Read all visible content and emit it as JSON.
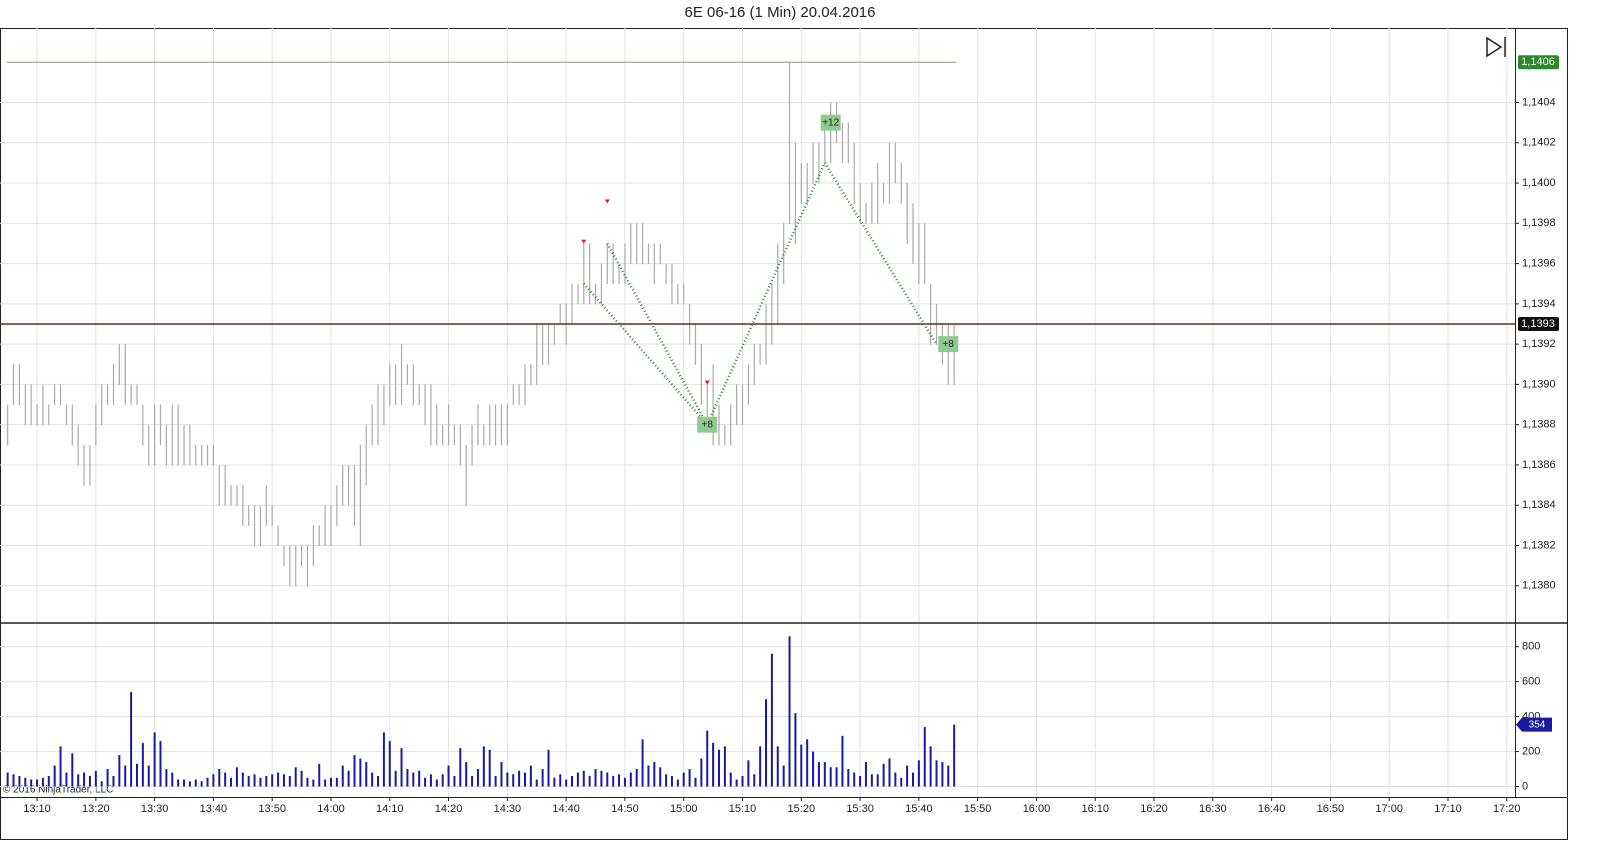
{
  "chart_data": [
    {
      "type": "hilo",
      "title": "6E 06-16 (1 Min)  20.04.2016",
      "copyright": "© 2016 NinjaTrader, LLC",
      "color": "#aaaaaa",
      "x": [
        785,
        786,
        787,
        788,
        789,
        790,
        791,
        792,
        793,
        794,
        795,
        796,
        797,
        798,
        799,
        800,
        801,
        802,
        803,
        804,
        805,
        806,
        807,
        808,
        809,
        810,
        811,
        812,
        813,
        814,
        815,
        816,
        817,
        818,
        819,
        820,
        821,
        822,
        823,
        824,
        825,
        826,
        827,
        828,
        829,
        830,
        831,
        832,
        833,
        834,
        835,
        836,
        837,
        838,
        839,
        840,
        841,
        842,
        843,
        844,
        845,
        846,
        847,
        848,
        849,
        850,
        851,
        852,
        853,
        854,
        855,
        856,
        857,
        858,
        859,
        860,
        861,
        862,
        863,
        864,
        865,
        866,
        867,
        868,
        869,
        870,
        871,
        872,
        873,
        874,
        875,
        876,
        877,
        878,
        879,
        880,
        881,
        882,
        883,
        884,
        885,
        886,
        887,
        888,
        889,
        890,
        891,
        892,
        893,
        894,
        895,
        896,
        897,
        898,
        899,
        900,
        901,
        902,
        903,
        904,
        905,
        906,
        907,
        908,
        909,
        910,
        911,
        912,
        913,
        914,
        915,
        916,
        917,
        918,
        919,
        920,
        921,
        922,
        923,
        924,
        925,
        926,
        927,
        928,
        929,
        930,
        931,
        932,
        933,
        934,
        935,
        936,
        937,
        938,
        939,
        940,
        941,
        942,
        943,
        944,
        945,
        946
      ],
      "high": [
        1.1389,
        1.1391,
        1.1391,
        1.139,
        1.139,
        1.1389,
        1.139,
        1.1389,
        1.139,
        1.139,
        1.1389,
        1.1389,
        1.1388,
        1.1387,
        1.1387,
        1.1389,
        1.139,
        1.139,
        1.1391,
        1.1392,
        1.1392,
        1.139,
        1.139,
        1.1389,
        1.1388,
        1.1389,
        1.1389,
        1.1388,
        1.1389,
        1.1389,
        1.1388,
        1.1388,
        1.1387,
        1.1387,
        1.1387,
        1.1387,
        1.1386,
        1.1386,
        1.1385,
        1.1385,
        1.1385,
        1.1384,
        1.1384,
        1.1384,
        1.1385,
        1.1384,
        1.1383,
        1.1382,
        1.1382,
        1.1382,
        1.1382,
        1.1382,
        1.1383,
        1.1383,
        1.1384,
        1.1384,
        1.1385,
        1.1386,
        1.1386,
        1.1386,
        1.1387,
        1.1388,
        1.1389,
        1.139,
        1.139,
        1.1391,
        1.1391,
        1.1392,
        1.1391,
        1.1391,
        1.139,
        1.139,
        1.139,
        1.1389,
        1.1388,
        1.1389,
        1.1388,
        1.1388,
        1.1387,
        1.1388,
        1.1389,
        1.1388,
        1.1389,
        1.1389,
        1.1389,
        1.1389,
        1.139,
        1.139,
        1.1391,
        1.1391,
        1.1393,
        1.1393,
        1.1393,
        1.1393,
        1.1394,
        1.1394,
        1.1395,
        1.1395,
        1.1397,
        1.1397,
        1.1395,
        1.1396,
        1.1397,
        1.1397,
        1.1396,
        1.1397,
        1.1398,
        1.1398,
        1.1398,
        1.1397,
        1.1397,
        1.1397,
        1.1396,
        1.1396,
        1.1395,
        1.1395,
        1.1394,
        1.1393,
        1.1392,
        1.139,
        1.1391,
        1.1389,
        1.1388,
        1.1389,
        1.139,
        1.139,
        1.1391,
        1.1392,
        1.1392,
        1.1394,
        1.1395,
        1.1397,
        1.1398,
        1.1406,
        1.1402,
        1.1401,
        1.1401,
        1.1402,
        1.1402,
        1.1403,
        1.1404,
        1.1404,
        1.1403,
        1.1403,
        1.1402,
        1.14,
        1.1399,
        1.14,
        1.1401,
        1.14,
        1.1402,
        1.1402,
        1.1401,
        1.14,
        1.1399,
        1.1398,
        1.1398,
        1.1395,
        1.1394,
        1.1393,
        1.1393,
        1.1393
      ],
      "low": [
        1.1387,
        1.1389,
        1.1389,
        1.1388,
        1.1388,
        1.1388,
        1.1388,
        1.1388,
        1.1389,
        1.1389,
        1.1388,
        1.1387,
        1.1386,
        1.1385,
        1.1385,
        1.1387,
        1.1388,
        1.1389,
        1.1389,
        1.139,
        1.1389,
        1.1389,
        1.1389,
        1.1387,
        1.1386,
        1.1386,
        1.1387,
        1.1386,
        1.1386,
        1.1386,
        1.1386,
        1.1386,
        1.1386,
        1.1386,
        1.1386,
        1.1386,
        1.1384,
        1.1384,
        1.1384,
        1.1384,
        1.1383,
        1.1383,
        1.1382,
        1.1382,
        1.1383,
        1.1383,
        1.1382,
        1.1381,
        1.138,
        1.138,
        1.1381,
        1.138,
        1.1381,
        1.1382,
        1.1382,
        1.1382,
        1.1383,
        1.1384,
        1.1384,
        1.1383,
        1.1382,
        1.1385,
        1.1387,
        1.1387,
        1.1388,
        1.1389,
        1.1389,
        1.1389,
        1.139,
        1.1389,
        1.1389,
        1.1388,
        1.1387,
        1.1387,
        1.1387,
        1.1387,
        1.1387,
        1.1386,
        1.1384,
        1.1386,
        1.1387,
        1.1387,
        1.1387,
        1.1387,
        1.1387,
        1.1387,
        1.1389,
        1.1389,
        1.1389,
        1.139,
        1.139,
        1.1391,
        1.1391,
        1.1392,
        1.1393,
        1.1392,
        1.1393,
        1.1394,
        1.1394,
        1.1394,
        1.1394,
        1.1394,
        1.1395,
        1.1395,
        1.1395,
        1.1395,
        1.1396,
        1.1396,
        1.1396,
        1.1396,
        1.1395,
        1.1396,
        1.1395,
        1.1394,
        1.1394,
        1.1394,
        1.1392,
        1.1391,
        1.1389,
        1.1388,
        1.1387,
        1.1387,
        1.1387,
        1.1387,
        1.1388,
        1.1388,
        1.1389,
        1.139,
        1.1391,
        1.1391,
        1.1392,
        1.1393,
        1.1395,
        1.1398,
        1.1397,
        1.1399,
        1.1399,
        1.14,
        1.14,
        1.1401,
        1.1401,
        1.1402,
        1.1401,
        1.1401,
        1.1399,
        1.1398,
        1.1398,
        1.1398,
        1.1398,
        1.1399,
        1.1399,
        1.14,
        1.1399,
        1.1397,
        1.1396,
        1.1395,
        1.1395,
        1.1392,
        1.1392,
        1.1391,
        1.139,
        1.139
      ],
      "xlim": [
        783.7,
        1041.4
      ],
      "xticks": [
        {
          "value": 790,
          "label": "13:10"
        },
        {
          "value": 800,
          "label": "13:20"
        },
        {
          "value": 810,
          "label": "13:30"
        },
        {
          "value": 820,
          "label": "13:40"
        },
        {
          "value": 830,
          "label": "13:50"
        },
        {
          "value": 840,
          "label": "14:00"
        },
        {
          "value": 850,
          "label": "14:10"
        },
        {
          "value": 860,
          "label": "14:20"
        },
        {
          "value": 870,
          "label": "14:30"
        },
        {
          "value": 880,
          "label": "14:40"
        },
        {
          "value": 890,
          "label": "14:50"
        },
        {
          "value": 900,
          "label": "15:00"
        },
        {
          "value": 910,
          "label": "15:10"
        },
        {
          "value": 920,
          "label": "15:20"
        },
        {
          "value": 930,
          "label": "15:30"
        },
        {
          "value": 940,
          "label": "15:40"
        },
        {
          "value": 950,
          "label": "15:50"
        },
        {
          "value": 960,
          "label": "16:00"
        },
        {
          "value": 970,
          "label": "16:10"
        },
        {
          "value": 980,
          "label": "16:20"
        },
        {
          "value": 990,
          "label": "16:30"
        },
        {
          "value": 1000,
          "label": "16:40"
        },
        {
          "value": 1010,
          "label": "16:50"
        },
        {
          "value": 1020,
          "label": "17:00"
        },
        {
          "value": 1030,
          "label": "17:10"
        },
        {
          "value": 1040,
          "label": "17:20"
        }
      ],
      "ylim": [
        1.13782,
        1.14077
      ],
      "yticks": [
        {
          "value": 1.138,
          "label": "1,1380"
        },
        {
          "value": 1.1382,
          "label": "1,1382"
        },
        {
          "value": 1.1384,
          "label": "1,1384"
        },
        {
          "value": 1.1386,
          "label": "1,1386"
        },
        {
          "value": 1.1388,
          "label": "1,1388"
        },
        {
          "value": 1.139,
          "label": "1,1390"
        },
        {
          "value": 1.1392,
          "label": "1,1392"
        },
        {
          "value": 1.1394,
          "label": "1,1394"
        },
        {
          "value": 1.1396,
          "label": "1,1396"
        },
        {
          "value": 1.1398,
          "label": "1,1398"
        },
        {
          "value": 1.14,
          "label": "1,1400"
        },
        {
          "value": 1.1402,
          "label": "1,1402"
        },
        {
          "value": 1.1404,
          "label": "1,1404"
        }
      ],
      "grid": true,
      "high_line": {
        "value": 1.1406,
        "label": "1,1406",
        "color": "#8a9a7a"
      },
      "price_line": {
        "value": 1.1393,
        "label": "1,1393",
        "color": "#6b2a1a"
      },
      "trade_color": "#2e8b2e",
      "trades": [
        {
          "x": [
            883,
            904
          ],
          "y": [
            1.1395,
            1.1388
          ]
        },
        {
          "x": [
            887,
            904
          ],
          "y": [
            1.1397,
            1.1388
          ]
        },
        {
          "x": [
            904,
            924
          ],
          "y": [
            1.1388,
            1.1401
          ]
        },
        {
          "x": [
            924,
            943
          ],
          "y": [
            1.1401,
            1.1392
          ]
        }
      ],
      "trade_labels": [
        {
          "x": 904,
          "y": 1.1388,
          "label": "+8"
        },
        {
          "x": 925,
          "y": 1.1403,
          "label": "+12"
        },
        {
          "x": 945,
          "y": 1.1392,
          "label": "+8"
        }
      ]
    },
    {
      "type": "bar",
      "color": "#1a1aa0",
      "x": [
        785,
        786,
        787,
        788,
        789,
        790,
        791,
        792,
        793,
        794,
        795,
        796,
        797,
        798,
        799,
        800,
        801,
        802,
        803,
        804,
        805,
        806,
        807,
        808,
        809,
        810,
        811,
        812,
        813,
        814,
        815,
        816,
        817,
        818,
        819,
        820,
        821,
        822,
        823,
        824,
        825,
        826,
        827,
        828,
        829,
        830,
        831,
        832,
        833,
        834,
        835,
        836,
        837,
        838,
        839,
        840,
        841,
        842,
        843,
        844,
        845,
        846,
        847,
        848,
        849,
        850,
        851,
        852,
        853,
        854,
        855,
        856,
        857,
        858,
        859,
        860,
        861,
        862,
        863,
        864,
        865,
        866,
        867,
        868,
        869,
        870,
        871,
        872,
        873,
        874,
        875,
        876,
        877,
        878,
        879,
        880,
        881,
        882,
        883,
        884,
        885,
        886,
        887,
        888,
        889,
        890,
        891,
        892,
        893,
        894,
        895,
        896,
        897,
        898,
        899,
        900,
        901,
        902,
        903,
        904,
        905,
        906,
        907,
        908,
        909,
        910,
        911,
        912,
        913,
        914,
        915,
        916,
        917,
        918,
        919,
        920,
        921,
        922,
        923,
        924,
        925,
        926,
        927,
        928,
        929,
        930,
        931,
        932,
        933,
        934,
        935,
        936,
        937,
        938,
        939,
        940,
        941,
        942,
        943,
        944,
        945,
        946
      ],
      "values": [
        80,
        70,
        60,
        50,
        40,
        40,
        50,
        60,
        120,
        230,
        80,
        190,
        70,
        80,
        60,
        90,
        30,
        100,
        60,
        180,
        120,
        540,
        130,
        250,
        120,
        310,
        260,
        100,
        80,
        40,
        40,
        30,
        40,
        30,
        50,
        70,
        100,
        80,
        50,
        110,
        80,
        60,
        70,
        50,
        60,
        70,
        80,
        70,
        60,
        110,
        90,
        50,
        40,
        130,
        40,
        50,
        50,
        120,
        90,
        180,
        160,
        140,
        80,
        60,
        310,
        260,
        90,
        220,
        100,
        80,
        90,
        50,
        70,
        40,
        70,
        120,
        60,
        220,
        140,
        60,
        100,
        230,
        210,
        60,
        140,
        80,
        70,
        90,
        80,
        120,
        40,
        100,
        210,
        50,
        70,
        40,
        60,
        80,
        90,
        60,
        100,
        90,
        80,
        60,
        70,
        50,
        80,
        100,
        270,
        120,
        140,
        110,
        70,
        60,
        40,
        80,
        100,
        50,
        160,
        320,
        250,
        210,
        230,
        80,
        40,
        60,
        150,
        70,
        230,
        500,
        760,
        230,
        120,
        860,
        420,
        240,
        270,
        200,
        140,
        140,
        110,
        110,
        290,
        100,
        80,
        60,
        140,
        70,
        70,
        130,
        160,
        80,
        50,
        120,
        80,
        150,
        340,
        230,
        150,
        140,
        120,
        354
      ],
      "xlim": [
        783.7,
        1041.4
      ],
      "xticks": [
        {
          "value": 790,
          "label": "13:10"
        },
        {
          "value": 800,
          "label": "13:20"
        },
        {
          "value": 810,
          "label": "13:30"
        },
        {
          "value": 820,
          "label": "13:40"
        },
        {
          "value": 830,
          "label": "13:50"
        },
        {
          "value": 840,
          "label": "14:00"
        },
        {
          "value": 850,
          "label": "14:10"
        },
        {
          "value": 860,
          "label": "14:20"
        },
        {
          "value": 870,
          "label": "14:30"
        },
        {
          "value": 880,
          "label": "14:40"
        },
        {
          "value": 890,
          "label": "14:50"
        },
        {
          "value": 900,
          "label": "15:00"
        },
        {
          "value": 910,
          "label": "15:10"
        },
        {
          "value": 920,
          "label": "15:20"
        },
        {
          "value": 930,
          "label": "15:30"
        },
        {
          "value": 940,
          "label": "15:40"
        },
        {
          "value": 950,
          "label": "15:50"
        },
        {
          "value": 960,
          "label": "16:00"
        },
        {
          "value": 970,
          "label": "16:10"
        },
        {
          "value": 980,
          "label": "16:20"
        },
        {
          "value": 990,
          "label": "16:30"
        },
        {
          "value": 1000,
          "label": "16:40"
        },
        {
          "value": 1010,
          "label": "16:50"
        },
        {
          "value": 1020,
          "label": "17:00"
        },
        {
          "value": 1030,
          "label": "17:10"
        },
        {
          "value": 1040,
          "label": "17:20"
        }
      ],
      "ylim": [
        -60,
        930
      ],
      "yticks": [
        0,
        200,
        400,
        600,
        800
      ],
      "grid": true
    }
  ]
}
